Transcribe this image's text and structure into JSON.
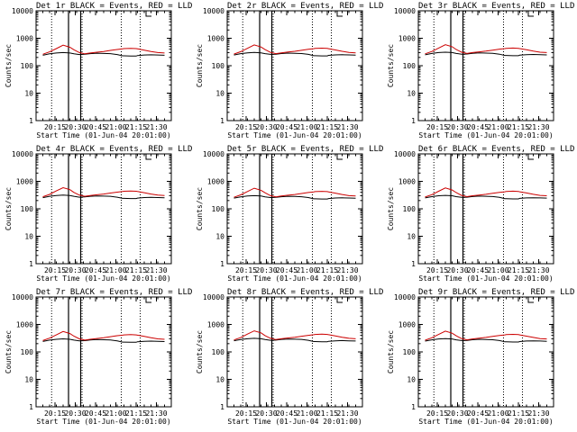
{
  "chart_data": [
    {
      "type": "line",
      "title": "Det 1r BLACK = Events, RED = LLD",
      "xlabel": "Start Time (01-Jun-04 20:01:00)",
      "ylabel": "Counts/sec",
      "yscale": "log",
      "ylim": [
        1,
        10000
      ],
      "x_tick_labels": [
        "20:15",
        "20:30",
        "20:45",
        "21:00",
        "21:15",
        "21:30"
      ],
      "y_tick_labels": [
        "1",
        "10",
        "100",
        "1000",
        "10000"
      ],
      "x_minutes": [
        5,
        10,
        15,
        20,
        25,
        28,
        32,
        36,
        40,
        45,
        50,
        55,
        60,
        64,
        65,
        70,
        74,
        75,
        80,
        85,
        90,
        95
      ],
      "series": [
        {
          "name": "Events",
          "color": "#000000",
          "values": [
            240,
            270,
            290,
            300,
            290,
            270,
            255,
            260,
            275,
            285,
            280,
            275,
            255,
            230,
            230,
            225,
            225,
            235,
            245,
            250,
            245,
            240
          ]
        },
        {
          "name": "LLD",
          "color": "#cc0000",
          "values": [
            260,
            320,
            420,
            560,
            470,
            380,
            300,
            270,
            290,
            310,
            330,
            360,
            390,
            410,
            420,
            430,
            420,
            410,
            370,
            330,
            300,
            290
          ]
        }
      ],
      "vlines_dotted": [
        11.5,
        34,
        63,
        77
      ],
      "vlines_solid": [
        24,
        33
      ]
    },
    {
      "type": "line",
      "title": "Det 2r BLACK = Events, RED = LLD",
      "xlabel": "Start Time (01-Jun-04 20:01:00)",
      "ylabel": "Counts/sec",
      "yscale": "log",
      "ylim": [
        1,
        10000
      ],
      "x_tick_labels": [
        "20:15",
        "20:30",
        "20:45",
        "21:00",
        "21:15",
        "21:30"
      ],
      "y_tick_labels": [
        "1",
        "10",
        "100",
        "1000",
        "10000"
      ],
      "x_minutes": [
        5,
        10,
        15,
        20,
        25,
        28,
        32,
        36,
        40,
        45,
        50,
        55,
        60,
        64,
        65,
        70,
        74,
        75,
        80,
        85,
        90,
        95
      ],
      "series": [
        {
          "name": "Events",
          "color": "#000000",
          "values": [
            245,
            275,
            295,
            305,
            295,
            275,
            258,
            262,
            278,
            288,
            283,
            278,
            258,
            232,
            232,
            228,
            228,
            238,
            248,
            252,
            248,
            243
          ]
        },
        {
          "name": "LLD",
          "color": "#cc0000",
          "values": [
            265,
            325,
            430,
            570,
            480,
            385,
            305,
            275,
            295,
            315,
            335,
            365,
            395,
            415,
            425,
            435,
            425,
            415,
            375,
            335,
            305,
            295
          ]
        }
      ],
      "vlines_dotted": [
        11.5,
        34,
        63,
        77
      ],
      "vlines_solid": [
        24,
        33
      ]
    },
    {
      "type": "line",
      "title": "Det 3r BLACK = Events, RED = LLD",
      "xlabel": "Start Time (01-Jun-04 20:01:00)",
      "ylabel": "Counts/sec",
      "yscale": "log",
      "ylim": [
        1,
        10000
      ],
      "x_tick_labels": [
        "20:15",
        "20:30",
        "20:45",
        "21:00",
        "21:15",
        "21:30"
      ],
      "y_tick_labels": [
        "1",
        "10",
        "100",
        "1000",
        "10000"
      ],
      "x_minutes": [
        5,
        10,
        15,
        20,
        25,
        28,
        32,
        36,
        40,
        45,
        50,
        55,
        60,
        64,
        65,
        70,
        74,
        75,
        80,
        85,
        90,
        95
      ],
      "series": [
        {
          "name": "Events",
          "color": "#000000",
          "values": [
            250,
            280,
            300,
            310,
            300,
            280,
            262,
            266,
            282,
            292,
            287,
            282,
            262,
            236,
            236,
            232,
            232,
            242,
            252,
            256,
            252,
            247
          ]
        },
        {
          "name": "LLD",
          "color": "#cc0000",
          "values": [
            270,
            330,
            440,
            580,
            490,
            390,
            310,
            280,
            300,
            320,
            340,
            370,
            400,
            420,
            430,
            440,
            430,
            420,
            380,
            340,
            310,
            300
          ]
        }
      ],
      "vlines_dotted": [
        11.5,
        34,
        63,
        77
      ],
      "vlines_solid": [
        24,
        33
      ]
    },
    {
      "type": "line",
      "title": "Det 4r BLACK = Events, RED = LLD",
      "xlabel": "Start Time (01-Jun-04 20:01:00)",
      "ylabel": "Counts/sec",
      "yscale": "log",
      "ylim": [
        1,
        10000
      ],
      "x_tick_labels": [
        "20:15",
        "20:30",
        "20:45",
        "21:00",
        "21:15",
        "21:30"
      ],
      "y_tick_labels": [
        "1",
        "10",
        "100",
        "1000",
        "10000"
      ],
      "x_minutes": [
        5,
        10,
        15,
        20,
        25,
        28,
        32,
        36,
        40,
        45,
        50,
        55,
        60,
        64,
        65,
        70,
        74,
        75,
        80,
        85,
        90,
        95
      ],
      "series": [
        {
          "name": "Events",
          "color": "#000000",
          "values": [
            255,
            285,
            305,
            315,
            305,
            285,
            265,
            270,
            285,
            295,
            290,
            285,
            265,
            240,
            240,
            236,
            236,
            246,
            256,
            260,
            256,
            251
          ]
        },
        {
          "name": "LLD",
          "color": "#cc0000",
          "values": [
            275,
            335,
            450,
            590,
            500,
            395,
            315,
            285,
            305,
            325,
            345,
            375,
            405,
            425,
            435,
            445,
            435,
            425,
            385,
            345,
            315,
            305
          ]
        }
      ],
      "vlines_dotted": [
        11.5,
        34,
        63,
        77
      ],
      "vlines_solid": [
        24,
        33
      ]
    },
    {
      "type": "line",
      "title": "Det 5r BLACK = Events, RED = LLD",
      "xlabel": "Start Time (01-Jun-04 20:01:00)",
      "ylabel": "Counts/sec",
      "yscale": "log",
      "ylim": [
        1,
        10000
      ],
      "x_tick_labels": [
        "20:15",
        "20:30",
        "20:45",
        "21:00",
        "21:15",
        "21:30"
      ],
      "y_tick_labels": [
        "1",
        "10",
        "100",
        "1000",
        "10000"
      ],
      "x_minutes": [
        5,
        10,
        15,
        20,
        25,
        28,
        32,
        36,
        40,
        45,
        50,
        55,
        60,
        64,
        65,
        70,
        74,
        75,
        80,
        85,
        90,
        95
      ],
      "series": [
        {
          "name": "Events",
          "color": "#000000",
          "values": [
            245,
            272,
            292,
            302,
            292,
            272,
            256,
            260,
            276,
            286,
            281,
            276,
            256,
            231,
            231,
            227,
            227,
            237,
            247,
            251,
            247,
            242
          ]
        },
        {
          "name": "LLD",
          "color": "#cc0000",
          "values": [
            262,
            322,
            425,
            565,
            475,
            382,
            302,
            272,
            292,
            312,
            332,
            362,
            392,
            412,
            422,
            432,
            422,
            412,
            372,
            332,
            302,
            292
          ]
        }
      ],
      "vlines_dotted": [
        11.5,
        34,
        63,
        77
      ],
      "vlines_solid": [
        24,
        33
      ]
    },
    {
      "type": "line",
      "title": "Det 6r BLACK = Events, RED = LLD",
      "xlabel": "Start Time (01-Jun-04 20:01:00)",
      "ylabel": "Counts/sec",
      "yscale": "log",
      "ylim": [
        1,
        10000
      ],
      "x_tick_labels": [
        "20:15",
        "20:30",
        "20:45",
        "21:00",
        "21:15",
        "21:30"
      ],
      "y_tick_labels": [
        "1",
        "10",
        "100",
        "1000",
        "10000"
      ],
      "x_minutes": [
        5,
        10,
        15,
        20,
        25,
        28,
        32,
        36,
        40,
        45,
        50,
        55,
        60,
        64,
        65,
        70,
        74,
        75,
        80,
        85,
        90,
        95
      ],
      "series": [
        {
          "name": "Events",
          "color": "#000000",
          "values": [
            250,
            278,
            298,
            308,
            298,
            278,
            260,
            264,
            280,
            290,
            285,
            280,
            260,
            234,
            234,
            230,
            230,
            240,
            250,
            254,
            250,
            245
          ]
        },
        {
          "name": "LLD",
          "color": "#cc0000",
          "values": [
            268,
            328,
            435,
            575,
            485,
            388,
            308,
            278,
            298,
            318,
            338,
            368,
            398,
            418,
            428,
            438,
            428,
            418,
            378,
            338,
            308,
            298
          ]
        }
      ],
      "vlines_dotted": [
        11.5,
        34,
        63,
        77
      ],
      "vlines_solid": [
        24,
        33
      ]
    },
    {
      "type": "line",
      "title": "Det 7r BLACK = Events, RED = LLD",
      "xlabel": "Start Time (01-Jun-04 20:01:00)",
      "ylabel": "Counts/sec",
      "yscale": "log",
      "ylim": [
        1,
        10000
      ],
      "x_tick_labels": [
        "20:15",
        "20:30",
        "20:45",
        "21:00",
        "21:15",
        "21:30"
      ],
      "y_tick_labels": [
        "1",
        "10",
        "100",
        "1000",
        "10000"
      ],
      "x_minutes": [
        5,
        10,
        15,
        20,
        25,
        28,
        32,
        36,
        40,
        45,
        50,
        55,
        60,
        64,
        65,
        70,
        74,
        75,
        80,
        85,
        90,
        95
      ],
      "series": [
        {
          "name": "Events",
          "color": "#000000",
          "values": [
            240,
            268,
            288,
            298,
            288,
            268,
            252,
            256,
            272,
            282,
            277,
            272,
            252,
            228,
            228,
            224,
            224,
            234,
            244,
            248,
            244,
            239
          ]
        },
        {
          "name": "LLD",
          "color": "#cc0000",
          "values": [
            258,
            318,
            418,
            555,
            465,
            376,
            298,
            268,
            288,
            308,
            328,
            358,
            388,
            408,
            418,
            428,
            418,
            408,
            368,
            328,
            298,
            288
          ]
        }
      ],
      "vlines_dotted": [
        11.5,
        34,
        63,
        77
      ],
      "vlines_solid": [
        24,
        33
      ]
    },
    {
      "type": "line",
      "title": "Det 8r BLACK = Events, RED = LLD",
      "xlabel": "Start Time (01-Jun-04 20:01:00)",
      "ylabel": "Counts/sec",
      "yscale": "log",
      "ylim": [
        1,
        10000
      ],
      "x_tick_labels": [
        "20:15",
        "20:30",
        "20:45",
        "21:00",
        "21:15",
        "21:30"
      ],
      "y_tick_labels": [
        "1",
        "10",
        "100",
        "1000",
        "10000"
      ],
      "x_minutes": [
        5,
        10,
        15,
        20,
        25,
        28,
        32,
        36,
        40,
        45,
        50,
        55,
        60,
        64,
        65,
        70,
        74,
        75,
        80,
        85,
        90,
        95
      ],
      "series": [
        {
          "name": "Events",
          "color": "#000000",
          "values": [
            255,
            282,
            302,
            312,
            302,
            282,
            265,
            268,
            285,
            295,
            290,
            285,
            265,
            238,
            238,
            234,
            234,
            244,
            254,
            258,
            254,
            249
          ]
        },
        {
          "name": "LLD",
          "color": "#cc0000",
          "values": [
            272,
            332,
            445,
            585,
            495,
            392,
            312,
            282,
            302,
            322,
            342,
            372,
            402,
            422,
            432,
            442,
            432,
            422,
            382,
            342,
            312,
            302
          ]
        }
      ],
      "vlines_dotted": [
        11.5,
        34,
        63,
        77
      ],
      "vlines_solid": [
        24,
        33
      ]
    },
    {
      "type": "line",
      "title": "Det 9r BLACK = Events, RED = LLD",
      "xlabel": "Start Time (01-Jun-04 20:01:00)",
      "ylabel": "Counts/sec",
      "yscale": "log",
      "ylim": [
        1,
        10000
      ],
      "x_tick_labels": [
        "20:15",
        "20:30",
        "20:45",
        "21:00",
        "21:15",
        "21:30"
      ],
      "y_tick_labels": [
        "1",
        "10",
        "100",
        "1000",
        "10000"
      ],
      "x_minutes": [
        5,
        10,
        15,
        20,
        25,
        28,
        32,
        36,
        40,
        45,
        50,
        55,
        60,
        64,
        65,
        70,
        74,
        75,
        80,
        85,
        90,
        95
      ],
      "series": [
        {
          "name": "Events",
          "color": "#000000",
          "values": [
            248,
            276,
            296,
            306,
            296,
            276,
            258,
            262,
            278,
            288,
            283,
            278,
            258,
            233,
            233,
            229,
            229,
            239,
            249,
            253,
            249,
            244
          ]
        },
        {
          "name": "LLD",
          "color": "#cc0000",
          "values": [
            266,
            326,
            432,
            572,
            482,
            386,
            306,
            276,
            296,
            316,
            336,
            366,
            396,
            416,
            426,
            436,
            426,
            416,
            376,
            336,
            306,
            296
          ]
        }
      ],
      "vlines_dotted": [
        11.5,
        34,
        63,
        77
      ],
      "vlines_solid": [
        24,
        33
      ]
    }
  ]
}
